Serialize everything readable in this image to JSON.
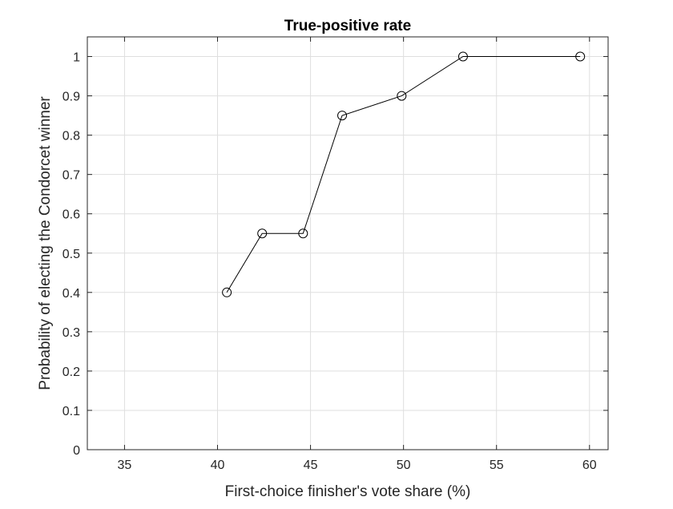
{
  "chart_data": {
    "type": "line",
    "title": "True-positive rate",
    "xlabel": "First-choice finisher's vote share (%)",
    "ylabel": "Probability of electing the Condorcet winner",
    "xlim": [
      33,
      61
    ],
    "ylim": [
      0,
      1.05
    ],
    "xticks": [
      35,
      40,
      45,
      50,
      55,
      60
    ],
    "yticks": [
      0,
      0.1,
      0.2,
      0.3,
      0.4,
      0.5,
      0.6,
      0.7,
      0.8,
      0.9,
      1
    ],
    "xtick_labels": [
      "35",
      "40",
      "45",
      "50",
      "55",
      "60"
    ],
    "ytick_labels": [
      "0",
      "0.1",
      "0.2",
      "0.3",
      "0.4",
      "0.5",
      "0.6",
      "0.7",
      "0.8",
      "0.9",
      "1"
    ],
    "grid": true,
    "marker": "circle",
    "series": [
      {
        "color": "#000000",
        "x": [
          40.5,
          42.4,
          44.6,
          46.7,
          49.9,
          53.2,
          59.5
        ],
        "y": [
          0.4,
          0.55,
          0.55,
          0.85,
          0.9,
          1.0,
          1.0
        ]
      }
    ]
  }
}
